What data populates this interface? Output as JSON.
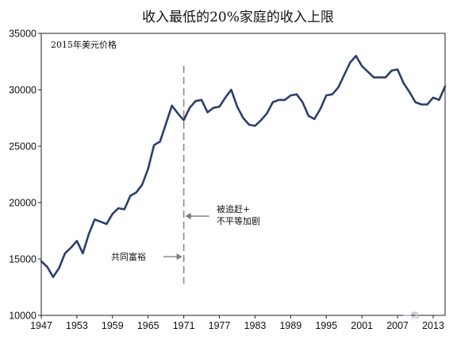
{
  "chart_data": {
    "type": "line",
    "title": "收入最低的20%家庭的收入上限",
    "subtitle": "2015年美元价格",
    "xlabel": "",
    "ylabel": "",
    "xlim": [
      1947,
      2015
    ],
    "ylim": [
      10000,
      35000
    ],
    "grid": false,
    "x_ticks": [
      "1947",
      "1953",
      "1959",
      "1965",
      "1971",
      "1977",
      "1983",
      "1989",
      "1995",
      "2001",
      "2007",
      "2013"
    ],
    "y_ticks": [
      "10000",
      "15000",
      "20000",
      "25000",
      "30000",
      "35000"
    ],
    "series": [
      {
        "color": "#2b3f6b",
        "x": [
          1947,
          1948,
          1949,
          1950,
          1951,
          1952,
          1953,
          1954,
          1955,
          1956,
          1957,
          1958,
          1959,
          1960,
          1961,
          1962,
          1963,
          1964,
          1965,
          1966,
          1967,
          1968,
          1969,
          1970,
          1971,
          1972,
          1973,
          1974,
          1975,
          1976,
          1977,
          1978,
          1979,
          1980,
          1981,
          1982,
          1983,
          1984,
          1985,
          1986,
          1987,
          1988,
          1989,
          1990,
          1991,
          1992,
          1993,
          1994,
          1995,
          1996,
          1997,
          1998,
          1999,
          2000,
          2001,
          2002,
          2003,
          2004,
          2005,
          2006,
          2007,
          2008,
          2009,
          2010,
          2011,
          2012,
          2013,
          2014,
          2015
        ],
        "y": [
          14800,
          14300,
          13400,
          14200,
          15500,
          16000,
          16600,
          15500,
          17200,
          18500,
          18300,
          18100,
          19000,
          19500,
          19400,
          20600,
          20900,
          21600,
          23000,
          25100,
          25400,
          27000,
          28600,
          27900,
          27300,
          28400,
          29000,
          29100,
          28000,
          28400,
          28500,
          29300,
          30000,
          28500,
          27500,
          26900,
          26800,
          27300,
          27900,
          28900,
          29100,
          29100,
          29500,
          29600,
          28900,
          27700,
          27400,
          28300,
          29500,
          29600,
          30200,
          31300,
          32400,
          33000,
          32100,
          31600,
          31100,
          31100,
          31100,
          31700,
          31800,
          30600,
          29800,
          28900,
          28700,
          28700,
          29300,
          29100,
          30300
        ]
      }
    ],
    "reference_line": {
      "x": 1971,
      "style": "dashed",
      "color": "#8a8a8a"
    },
    "annotations": [
      {
        "label": "共同富裕",
        "x": 1971,
        "y": 15200,
        "arrow": "right",
        "side": "left"
      },
      {
        "label_lines": [
          "被追赶+",
          "不平等加剧"
        ],
        "x": 1971,
        "y": 18800,
        "arrow": "left",
        "side": "right"
      }
    ],
    "watermark": "一熊"
  }
}
